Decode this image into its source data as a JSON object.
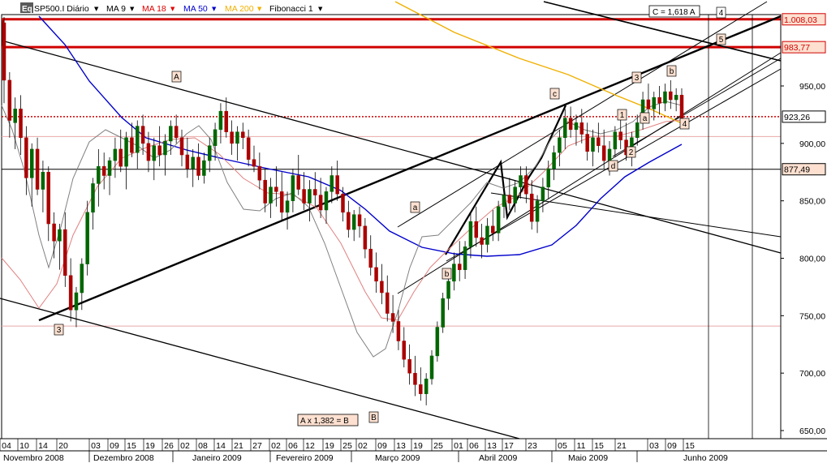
{
  "chart_data": {
    "type": "candlestick",
    "symbol_label": "SP500.I Diário",
    "logo_text": "Eq",
    "menu_arrow": "▼",
    "indicators": [
      {
        "label": "MA 9",
        "color": "#000000"
      },
      {
        "label": "MA 18",
        "color": "#e00000"
      },
      {
        "label": "MA 50",
        "color": "#0000cc"
      },
      {
        "label": "MA 200",
        "color": "#f0b000"
      },
      {
        "label": "Fibonacci 1",
        "color": "#000000"
      }
    ],
    "ylim": [
      640,
      1030
    ],
    "y_ticks": [
      650,
      700,
      750,
      800,
      850,
      900,
      950
    ],
    "y_tick_labels": [
      "650,00",
      "700,00",
      "750,00",
      "800,00",
      "850,00",
      "900,00",
      "950,00"
    ],
    "highlighted_prices": [
      {
        "value": 1008.03,
        "label": "1.008,03",
        "color": "#d00000",
        "fill": "#fde0d0"
      },
      {
        "value": 983.77,
        "label": "983,77",
        "color": "#d00000",
        "fill": "#fde0d0"
      },
      {
        "value": 923.26,
        "label": "923,26",
        "color": "#000000",
        "fill": "#ffffff"
      },
      {
        "value": 877.49,
        "label": "877,49",
        "color": "#000000",
        "fill": "#fde0d0"
      }
    ],
    "x_tick_labels": [
      "04",
      "10",
      "14",
      "20",
      "03",
      "09",
      "15",
      "19",
      "26",
      "02",
      "08",
      "14",
      "21",
      "27",
      "02",
      "06",
      "12",
      "19",
      "25",
      "02",
      "09",
      "13",
      "19",
      "25",
      "01",
      "06",
      "13",
      "17",
      "23",
      "05",
      "11",
      "15",
      "21",
      "03",
      "09",
      "15"
    ],
    "month_labels": [
      "Novembro 2008",
      "Dezembro 2008",
      "Janeiro 2009",
      "Fevereiro 2009",
      "Março 2009",
      "Abril 2009",
      "Maio 2009",
      "Junho 2009"
    ],
    "wave_labels": [
      "A",
      "3",
      "a",
      "b",
      "c",
      "1",
      "2",
      "3",
      "a",
      "b",
      "d",
      "4",
      "B",
      "4",
      "5"
    ],
    "fib_annotations": [
      "C = 1,618 A",
      "A  x 1,382 = B"
    ],
    "candles": [
      [
        1005,
        1010,
        935,
        955
      ],
      [
        955,
        962,
        905,
        920
      ],
      [
        918,
        940,
        895,
        930
      ],
      [
        930,
        942,
        890,
        905
      ],
      [
        905,
        915,
        855,
        870
      ],
      [
        870,
        900,
        845,
        895
      ],
      [
        895,
        905,
        855,
        860
      ],
      [
        860,
        885,
        840,
        875
      ],
      [
        875,
        880,
        815,
        830
      ],
      [
        830,
        840,
        800,
        815
      ],
      [
        815,
        830,
        790,
        825
      ],
      [
        825,
        840,
        775,
        785
      ],
      [
        785,
        800,
        745,
        755
      ],
      [
        755,
        775,
        740,
        770
      ],
      [
        770,
        800,
        755,
        795
      ],
      [
        795,
        850,
        785,
        840
      ],
      [
        840,
        870,
        825,
        865
      ],
      [
        865,
        895,
        845,
        880
      ],
      [
        880,
        892,
        860,
        872
      ],
      [
        872,
        888,
        855,
        885
      ],
      [
        885,
        905,
        870,
        895
      ],
      [
        895,
        912,
        875,
        880
      ],
      [
        880,
        910,
        860,
        905
      ],
      [
        905,
        918,
        888,
        892
      ],
      [
        892,
        920,
        878,
        915
      ],
      [
        915,
        925,
        890,
        900
      ],
      [
        900,
        910,
        875,
        885
      ],
      [
        885,
        905,
        868,
        898
      ],
      [
        898,
        915,
        880,
        890
      ],
      [
        890,
        908,
        872,
        902
      ],
      [
        902,
        920,
        890,
        915
      ],
      [
        915,
        925,
        900,
        905
      ],
      [
        905,
        912,
        880,
        890
      ],
      [
        890,
        905,
        870,
        878
      ],
      [
        878,
        895,
        862,
        888
      ],
      [
        888,
        900,
        868,
        872
      ],
      [
        872,
        892,
        865,
        885
      ],
      [
        885,
        905,
        875,
        898
      ],
      [
        898,
        918,
        885,
        912
      ],
      [
        912,
        935,
        900,
        928
      ],
      [
        928,
        940,
        905,
        910
      ],
      [
        910,
        920,
        890,
        900
      ],
      [
        900,
        915,
        885,
        910
      ],
      [
        910,
        918,
        895,
        905
      ],
      [
        905,
        912,
        880,
        886
      ],
      [
        886,
        898,
        875,
        880
      ],
      [
        880,
        892,
        860,
        868
      ],
      [
        868,
        878,
        840,
        848
      ],
      [
        848,
        870,
        835,
        862
      ],
      [
        862,
        880,
        845,
        858
      ],
      [
        858,
        875,
        832,
        840
      ],
      [
        840,
        858,
        825,
        850
      ],
      [
        850,
        878,
        840,
        872
      ],
      [
        872,
        890,
        855,
        860
      ],
      [
        860,
        875,
        842,
        848
      ],
      [
        848,
        868,
        832,
        860
      ],
      [
        860,
        875,
        845,
        855
      ],
      [
        855,
        870,
        835,
        842
      ],
      [
        842,
        862,
        830,
        858
      ],
      [
        858,
        880,
        848,
        872
      ],
      [
        872,
        885,
        850,
        856
      ],
      [
        856,
        862,
        832,
        840
      ],
      [
        840,
        850,
        818,
        825
      ],
      [
        825,
        842,
        815,
        838
      ],
      [
        838,
        845,
        818,
        828
      ],
      [
        828,
        835,
        800,
        808
      ],
      [
        808,
        820,
        785,
        792
      ],
      [
        792,
        805,
        770,
        780
      ],
      [
        780,
        795,
        760,
        770
      ],
      [
        770,
        785,
        745,
        752
      ],
      [
        752,
        768,
        735,
        745
      ],
      [
        745,
        755,
        720,
        728
      ],
      [
        728,
        740,
        705,
        712
      ],
      [
        712,
        725,
        690,
        700
      ],
      [
        700,
        715,
        680,
        690
      ],
      [
        690,
        705,
        676,
        682
      ],
      [
        682,
        700,
        672,
        695
      ],
      [
        695,
        720,
        690,
        715
      ],
      [
        715,
        745,
        710,
        740
      ],
      [
        740,
        770,
        735,
        765
      ],
      [
        765,
        790,
        755,
        780
      ],
      [
        780,
        805,
        772,
        795
      ],
      [
        795,
        815,
        780,
        790
      ],
      [
        790,
        815,
        782,
        810
      ],
      [
        810,
        840,
        800,
        832
      ],
      [
        832,
        845,
        810,
        818
      ],
      [
        818,
        830,
        800,
        812
      ],
      [
        812,
        835,
        805,
        828
      ],
      [
        828,
        842,
        815,
        822
      ],
      [
        822,
        850,
        815,
        845
      ],
      [
        845,
        862,
        835,
        855
      ],
      [
        855,
        870,
        842,
        848
      ],
      [
        848,
        868,
        840,
        862
      ],
      [
        862,
        880,
        852,
        872
      ],
      [
        872,
        880,
        848,
        856
      ],
      [
        856,
        868,
        825,
        832
      ],
      [
        832,
        855,
        822,
        850
      ],
      [
        850,
        870,
        840,
        862
      ],
      [
        862,
        885,
        852,
        878
      ],
      [
        878,
        898,
        868,
        892
      ],
      [
        892,
        912,
        880,
        905
      ],
      [
        905,
        930,
        895,
        922
      ],
      [
        922,
        932,
        905,
        912
      ],
      [
        912,
        925,
        898,
        918
      ],
      [
        918,
        930,
        900,
        908
      ],
      [
        908,
        918,
        885,
        893
      ],
      [
        893,
        912,
        880,
        905
      ],
      [
        905,
        918,
        892,
        898
      ],
      [
        898,
        912,
        878,
        885
      ],
      [
        885,
        902,
        872,
        895
      ],
      [
        895,
        915,
        888,
        910
      ],
      [
        910,
        922,
        895,
        903
      ],
      [
        903,
        918,
        885,
        890
      ],
      [
        890,
        910,
        880,
        905
      ],
      [
        905,
        925,
        898,
        918
      ],
      [
        918,
        945,
        912,
        938
      ],
      [
        938,
        952,
        925,
        930
      ],
      [
        930,
        945,
        920,
        940
      ],
      [
        940,
        950,
        925,
        935
      ],
      [
        935,
        952,
        928,
        945
      ],
      [
        945,
        955,
        930,
        938
      ],
      [
        938,
        948,
        928,
        942
      ],
      [
        942,
        948,
        915,
        922
      ]
    ]
  }
}
